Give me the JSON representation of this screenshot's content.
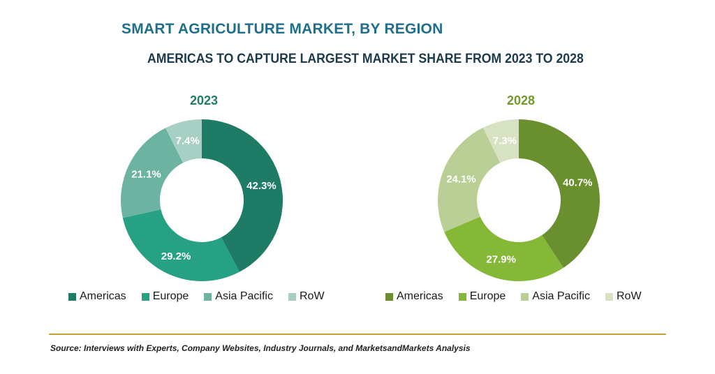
{
  "header": {
    "title": "SMART AGRICULTURE MARKET, BY REGION",
    "subtitle": "AMERICAS TO CAPTURE LARGEST MARKET SHARE FROM 2023 TO 2028"
  },
  "footer": {
    "source": "Source: Interviews with Experts, Company Websites, Industry Journals, and MarketsandMarkets Analysis"
  },
  "colors": {
    "title": "#1f6e8c",
    "rule": "#c7a335"
  },
  "chart_data": [
    {
      "type": "pie",
      "title": "2023",
      "title_color": "#237a67",
      "categories": [
        "Americas",
        "Europe",
        "Asia Pacific",
        "RoW"
      ],
      "values": [
        42.3,
        29.2,
        21.1,
        7.4
      ],
      "labels": [
        "42.3%",
        "29.2%",
        "21.1%",
        "7.4%"
      ],
      "colors": [
        "#1d7b66",
        "#26a183",
        "#6cb4a1",
        "#a8cfc3"
      ],
      "legend_position": "bottom"
    },
    {
      "type": "pie",
      "title": "2028",
      "title_color": "#6f9a2a",
      "categories": [
        "Americas",
        "Europe",
        "Asia Pacific",
        "RoW"
      ],
      "values": [
        40.7,
        27.9,
        24.1,
        7.3
      ],
      "labels": [
        "40.7%",
        "27.9%",
        "24.1%",
        "7.3%"
      ],
      "colors": [
        "#6a8f2f",
        "#86b837",
        "#b9cf95",
        "#d6e2c2"
      ],
      "legend_position": "bottom"
    }
  ]
}
